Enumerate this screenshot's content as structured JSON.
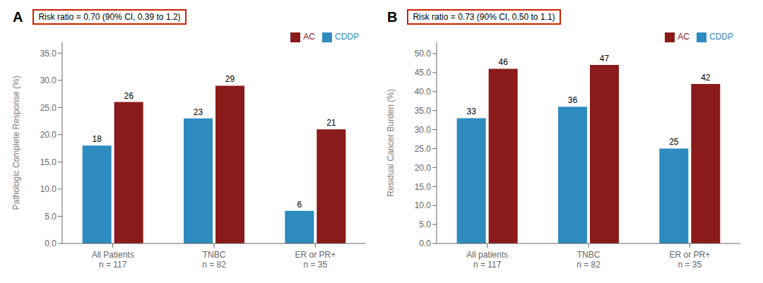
{
  "chart_data": [
    {
      "type": "bar",
      "title": "A",
      "annotations": [
        "Risk ratio = 0.70 (90% CI, 0.39 to 1.2)"
      ],
      "y_label": "Pathologic Complete Response (%)",
      "categories": [
        "All Patients\nn = 117",
        "TNBC\nn = 82",
        "ER or PR+\nn = 35"
      ],
      "series": [
        {
          "name": "CDDP",
          "color": "#2E8BC0",
          "values": [
            18,
            23,
            6
          ]
        },
        {
          "name": "AC",
          "color": "#8B1A1A",
          "values": [
            26,
            29,
            21
          ]
        }
      ],
      "ylim": [
        0,
        37
      ],
      "yticks": [
        {
          "value": 0,
          "label": "0.0"
        },
        {
          "value": 5,
          "label": "5.0"
        },
        {
          "value": 10,
          "label": "10.0"
        },
        {
          "value": 15,
          "label": "15.0"
        },
        {
          "value": 20,
          "label": "20.0"
        },
        {
          "value": 25,
          "label": "25.0"
        },
        {
          "value": 30,
          "label": "30.0"
        },
        {
          "value": 35,
          "label": "35.0"
        }
      ],
      "grid": false,
      "legend": "upper right",
      "data_labels": true
    },
    {
      "type": "bar",
      "title": "B",
      "annotations": [
        "Risk ratio = 0.73 (90% CI, 0.50 to 1.1)"
      ],
      "y_label": "Residual Cancer Burden (%)",
      "categories": [
        "All patients\nn = 117",
        "TNBC\nn = 82",
        "ER or PR+\nn = 35"
      ],
      "series": [
        {
          "name": "CDDP",
          "color": "#2E8BC0",
          "values": [
            33,
            36,
            25
          ]
        },
        {
          "name": "AC",
          "color": "#8B1A1A",
          "values": [
            46,
            47,
            42
          ]
        }
      ],
      "ylim": [
        0,
        53
      ],
      "yticks": [
        {
          "value": 0,
          "label": "0.0"
        },
        {
          "value": 5,
          "label": "5.0"
        },
        {
          "value": 10,
          "label": "10.0"
        },
        {
          "value": 15,
          "label": "15.0"
        },
        {
          "value": 20,
          "label": "20.0"
        },
        {
          "value": 25,
          "label": "25.0"
        },
        {
          "value": 30,
          "label": "30.0"
        },
        {
          "value": 35,
          "label": "35.0"
        },
        {
          "value": 40,
          "label": "40.0"
        },
        {
          "value": 45,
          "label": "45.0"
        },
        {
          "value": 50,
          "label": "50.0"
        }
      ],
      "grid": false,
      "legend": "upper right",
      "data_labels": true
    }
  ]
}
